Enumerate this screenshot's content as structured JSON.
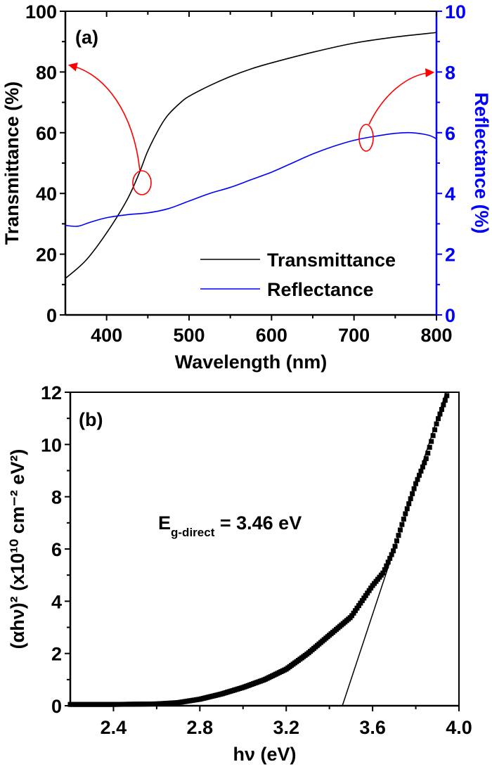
{
  "chart_data": [
    {
      "type": "line",
      "panel_label": "(a)",
      "xlabel": "Wavelength (nm)",
      "ylabel": "Transmittance (%)",
      "ylabel_right": "Reflectance (%)",
      "xlim": [
        350,
        800
      ],
      "ylim": [
        0,
        100
      ],
      "ylim_right": [
        0,
        10
      ],
      "xticks": [
        "400",
        "500",
        "600",
        "700",
        "800"
      ],
      "yticks": [
        "0",
        "20",
        "40",
        "60",
        "80",
        "100"
      ],
      "yticks_right": [
        "0",
        "2",
        "4",
        "6",
        "8",
        "10"
      ],
      "grid": false,
      "legend_placement": "bottom-right",
      "colors": {
        "transmittance": "#000000",
        "reflectance": "#0000ff",
        "annotation": "#ff0000"
      },
      "series": [
        {
          "name": "Transmittance",
          "axis": "left",
          "x": [
            350,
            375,
            400,
            425,
            440,
            450,
            465,
            475,
            490,
            500,
            525,
            550,
            575,
            600,
            650,
            700,
            750,
            800
          ],
          "y": [
            12,
            18,
            27,
            38,
            47,
            54,
            62,
            66,
            70,
            72,
            75.5,
            78.5,
            81,
            83,
            86.5,
            89.5,
            91.5,
            93
          ]
        },
        {
          "name": "Reflectance",
          "axis": "right",
          "x": [
            350,
            365,
            380,
            400,
            425,
            450,
            475,
            500,
            525,
            550,
            575,
            600,
            625,
            650,
            675,
            700,
            725,
            750,
            770,
            790,
            800
          ],
          "y": [
            2.95,
            2.92,
            3.05,
            3.2,
            3.3,
            3.36,
            3.5,
            3.75,
            4.0,
            4.2,
            4.45,
            4.7,
            5.0,
            5.3,
            5.55,
            5.75,
            5.88,
            5.98,
            6.0,
            5.92,
            5.8
          ]
        }
      ]
    },
    {
      "type": "scatter",
      "panel_label": "(b)",
      "xlabel": "hν (eV)",
      "ylabel": "(αhν)² (x10¹⁰ cm⁻² eV²)",
      "xlim": [
        2.2,
        4.0
      ],
      "ylim": [
        0,
        12
      ],
      "xticks": [
        "2.4",
        "2.8",
        "3.2",
        "3.6",
        "4.0"
      ],
      "yticks": [
        "0",
        "2",
        "4",
        "6",
        "8",
        "10",
        "12"
      ],
      "grid": false,
      "annotation": {
        "main": "E",
        "subscript": "g-direct",
        "rest": " = 3.46 eV"
      },
      "series": [
        {
          "marker": "square",
          "x": [
            2.2,
            2.4,
            2.6,
            2.7,
            2.8,
            2.9,
            3.0,
            3.1,
            3.2,
            3.3,
            3.4,
            3.5,
            3.55,
            3.6,
            3.65,
            3.7,
            3.75,
            3.8,
            3.85,
            3.9,
            3.95
          ],
          "y": [
            0.05,
            0.05,
            0.07,
            0.12,
            0.25,
            0.45,
            0.7,
            1.0,
            1.4,
            2.0,
            2.7,
            3.4,
            4.0,
            4.6,
            5.1,
            6.0,
            7.3,
            8.5,
            9.5,
            10.9,
            12.0
          ]
        }
      ],
      "fit_line": {
        "x": [
          3.46,
          3.94
        ],
        "y": [
          0,
          12
        ]
      }
    }
  ]
}
